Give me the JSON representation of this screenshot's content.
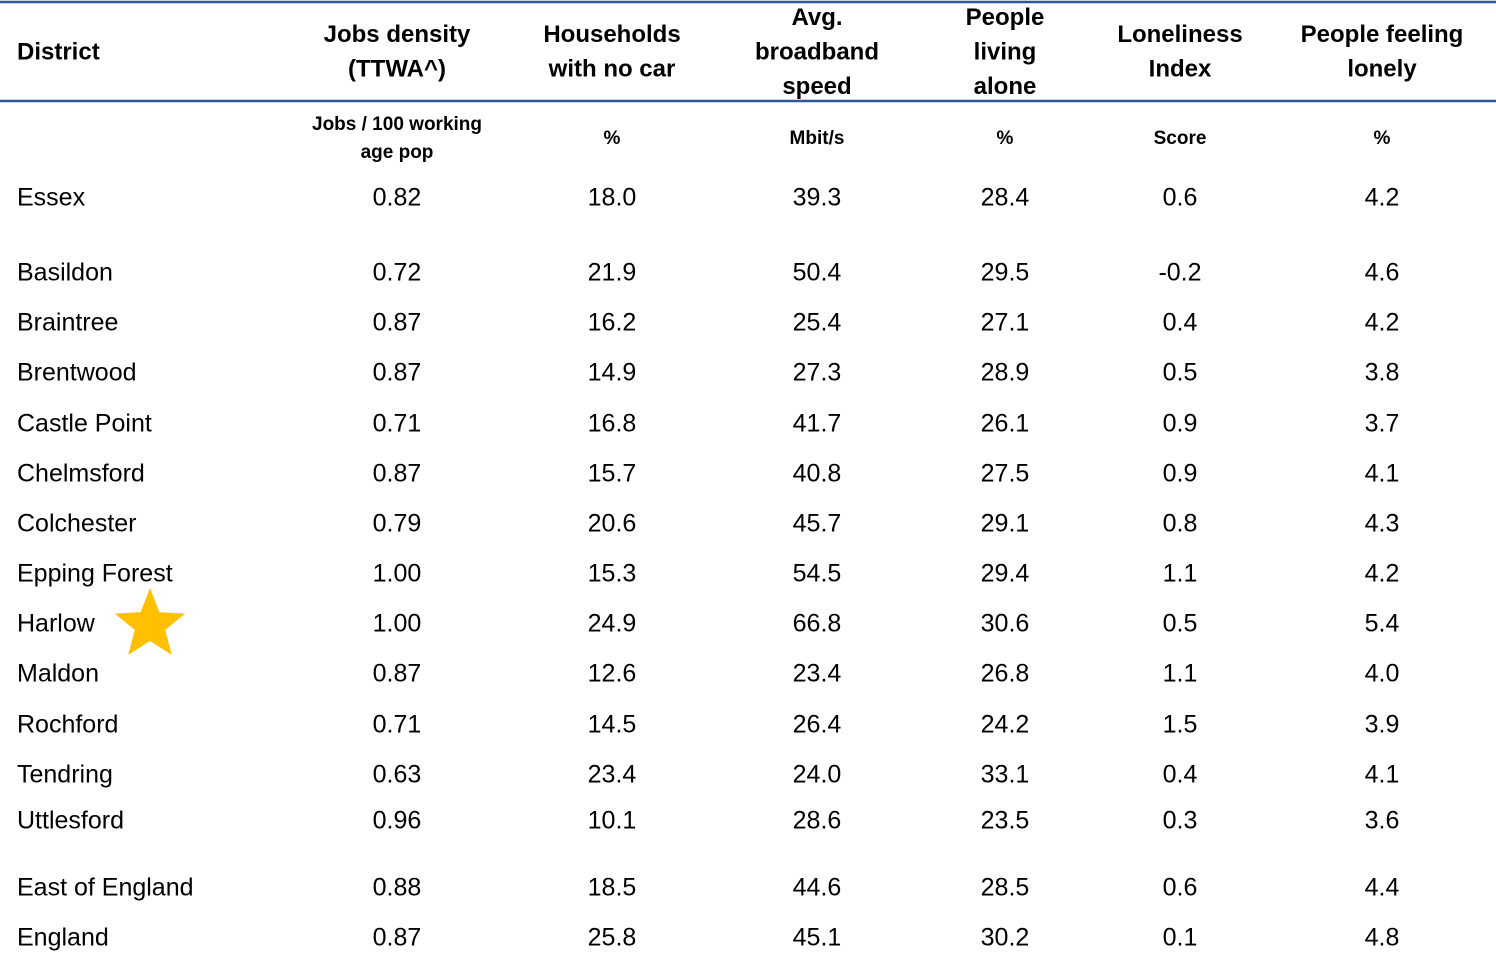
{
  "table": {
    "header": [
      [
        "District"
      ],
      [
        "Jobs density",
        "(TTWA^)"
      ],
      [
        "Households",
        "with no car"
      ],
      [
        "Avg.",
        "broadband",
        "speed"
      ],
      [
        "People",
        "living",
        "alone"
      ],
      [
        "Loneliness",
        "Index"
      ],
      [
        "People feeling",
        "lonely"
      ]
    ],
    "units": [
      [
        "Jobs / 100 working",
        "age pop"
      ],
      [
        "%"
      ],
      [
        "Mbit/s"
      ],
      [
        "%"
      ],
      [
        "Score"
      ],
      [
        "%"
      ]
    ],
    "rows": [
      [
        "Essex",
        "0.82",
        "18.0",
        "39.3",
        "28.4",
        "0.6",
        "4.2"
      ],
      [
        "Basildon",
        "0.72",
        "21.9",
        "50.4",
        "29.5",
        "-0.2",
        "4.6"
      ],
      [
        "Braintree",
        "0.87",
        "16.2",
        "25.4",
        "27.1",
        "0.4",
        "4.2"
      ],
      [
        "Brentwood",
        "0.87",
        "14.9",
        "27.3",
        "28.9",
        "0.5",
        "3.8"
      ],
      [
        "Castle Point",
        "0.71",
        "16.8",
        "41.7",
        "26.1",
        "0.9",
        "3.7"
      ],
      [
        "Chelmsford",
        "0.87",
        "15.7",
        "40.8",
        "27.5",
        "0.9",
        "4.1"
      ],
      [
        "Colchester",
        "0.79",
        "20.6",
        "45.7",
        "29.1",
        "0.8",
        "4.3"
      ],
      [
        "Epping Forest",
        "1.00",
        "15.3",
        "54.5",
        "29.4",
        "1.1",
        "4.2"
      ],
      [
        "Harlow",
        "1.00",
        "24.9",
        "66.8",
        "30.6",
        "0.5",
        "5.4"
      ],
      [
        "Maldon",
        "0.87",
        "12.6",
        "23.4",
        "26.8",
        "1.1",
        "4.0"
      ],
      [
        "Rochford",
        "0.71",
        "14.5",
        "26.4",
        "24.2",
        "1.5",
        "3.9"
      ],
      [
        "Tendring",
        "0.63",
        "23.4",
        "24.0",
        "33.1",
        "0.4",
        "4.1"
      ],
      [
        "Uttlesford",
        "0.96",
        "10.1",
        "28.6",
        "23.5",
        "0.3",
        "3.6"
      ],
      [
        "East of England",
        "0.88",
        "18.5",
        "44.6",
        "28.5",
        "0.6",
        "4.4"
      ],
      [
        "England",
        "0.87",
        "25.8",
        "45.1",
        "30.2",
        "0.1",
        "4.8"
      ]
    ]
  }
}
